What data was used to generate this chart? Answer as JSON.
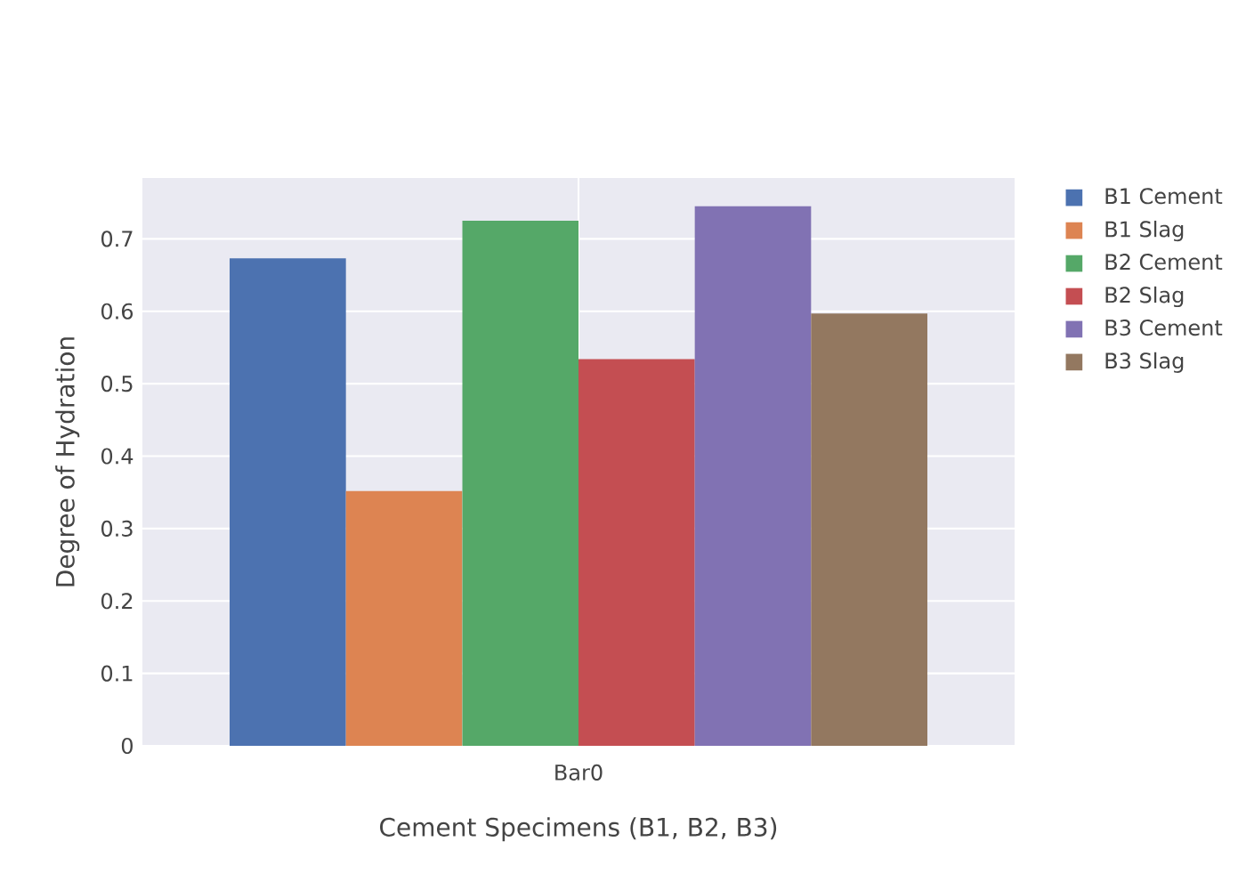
{
  "chart_data": {
    "type": "bar",
    "xlabel": "Cement Specimens (B1, B2, B3)",
    "ylabel": "Degree of Hydration",
    "categories": [
      "Bar0"
    ],
    "series": [
      {
        "name": "B1 Cement",
        "color": "#4c72b0",
        "values": [
          0.673
        ]
      },
      {
        "name": "B1 Slag",
        "color": "#dd8452",
        "values": [
          0.352
        ]
      },
      {
        "name": "B2 Cement",
        "color": "#55a868",
        "values": [
          0.725
        ]
      },
      {
        "name": "B2 Slag",
        "color": "#c44e52",
        "values": [
          0.534
        ]
      },
      {
        "name": "B3 Cement",
        "color": "#8172b3",
        "values": [
          0.745
        ]
      },
      {
        "name": "B3 Slag",
        "color": "#937860",
        "values": [
          0.597
        ]
      }
    ],
    "ylim": [
      0,
      0.784
    ],
    "yticks": [
      0,
      0.1,
      0.2,
      0.3,
      0.4,
      0.5,
      0.6,
      0.7
    ],
    "grid": true,
    "legend": "right"
  }
}
